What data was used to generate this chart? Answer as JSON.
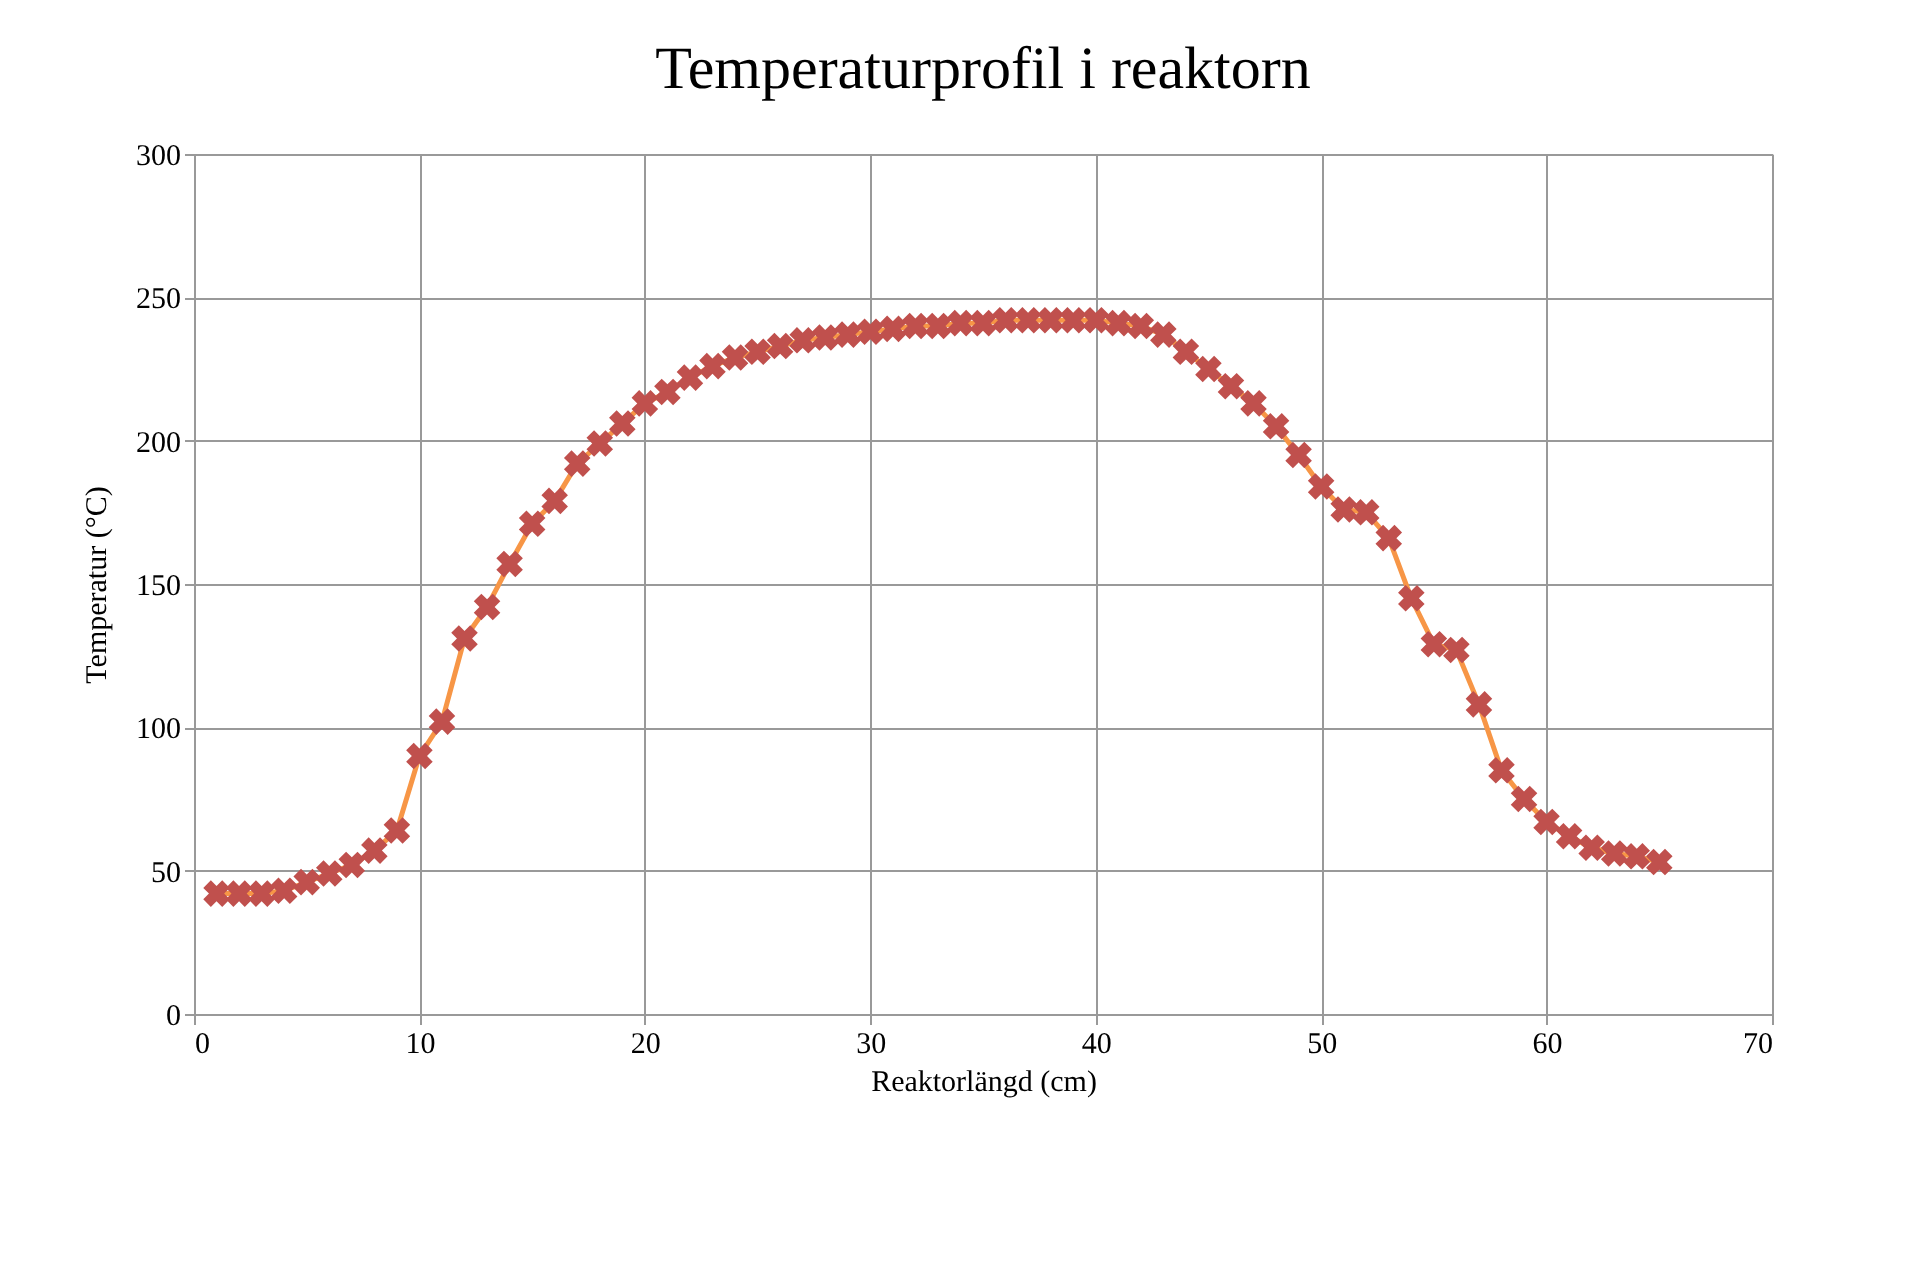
{
  "chart_data": {
    "type": "line",
    "title": "Temperaturprofil i reaktorn",
    "xlabel": "Reaktorlängd (cm)",
    "ylabel": "Temperatur (°C)",
    "x": [
      1,
      2,
      3,
      4,
      5,
      6,
      7,
      8,
      9,
      10,
      11,
      12,
      13,
      14,
      15,
      16,
      17,
      18,
      19,
      20,
      21,
      22,
      23,
      24,
      25,
      26,
      27,
      28,
      29,
      30,
      31,
      32,
      33,
      34,
      35,
      36,
      37,
      38,
      39,
      40,
      41,
      42,
      43,
      44,
      45,
      46,
      47,
      48,
      49,
      50,
      51,
      52,
      53,
      54,
      55,
      56,
      57,
      58,
      59,
      60,
      61,
      62,
      63,
      64,
      65
    ],
    "series": [
      {
        "color": "#f79646",
        "marker": "none",
        "values": [
          42,
          42,
          42,
          43,
          46,
          49,
          52,
          57,
          64,
          90,
          102,
          131,
          142,
          157,
          171,
          179,
          192,
          199,
          206,
          213,
          217,
          222,
          226,
          229,
          231,
          233,
          235,
          236,
          237,
          238,
          239,
          240,
          240,
          241,
          241,
          242,
          242,
          242,
          242,
          242,
          241,
          240,
          237,
          231,
          225,
          219,
          213,
          205,
          195,
          184,
          176,
          175,
          166,
          145,
          129,
          127,
          108,
          85,
          75,
          67,
          62,
          58,
          56,
          55,
          53
        ]
      },
      {
        "type": "scatter",
        "color": "#c0504d",
        "marker": "cross",
        "values": [
          42,
          42,
          42,
          43,
          46,
          49,
          52,
          57,
          64,
          90,
          102,
          131,
          142,
          157,
          171,
          179,
          192,
          199,
          206,
          213,
          217,
          222,
          226,
          229,
          231,
          233,
          235,
          236,
          237,
          238,
          239,
          240,
          240,
          241,
          241,
          242,
          242,
          242,
          242,
          242,
          241,
          240,
          237,
          231,
          225,
          219,
          213,
          205,
          195,
          184,
          176,
          175,
          166,
          145,
          129,
          127,
          108,
          85,
          75,
          67,
          62,
          58,
          56,
          55,
          53
        ]
      }
    ],
    "xlim": [
      0,
      70
    ],
    "xticks": [
      0,
      10,
      20,
      30,
      40,
      50,
      60,
      70
    ],
    "ylim": [
      0,
      300
    ],
    "yticks": [
      0,
      50,
      100,
      150,
      200,
      250,
      300
    ],
    "grid": true
  }
}
